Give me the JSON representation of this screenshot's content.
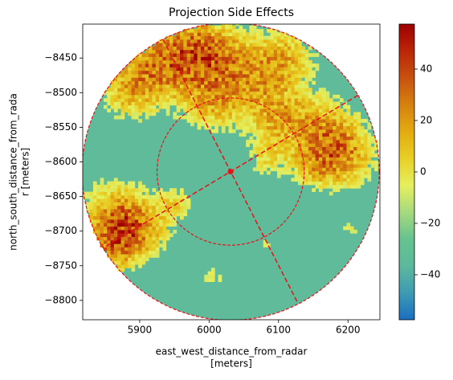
{
  "chart_data": {
    "type": "radar-ppi",
    "title": "Projection Side Effects",
    "xlabel": [
      "east_west_distance_from_radar",
      "[meters]"
    ],
    "ylabel": [
      "north_south_distance_from_rada",
      "r [meters]"
    ],
    "xlim": [
      5818,
      6246
    ],
    "ylim": [
      -8828,
      -8401
    ],
    "xticks": [
      5900,
      6000,
      6100,
      6200
    ],
    "yticks": [
      {
        "value": -8450,
        "label": "−8450"
      },
      {
        "value": -8500,
        "label": "−8500"
      },
      {
        "value": -8550,
        "label": "−8550"
      },
      {
        "value": -8600,
        "label": "−8600"
      },
      {
        "value": -8650,
        "label": "−8650"
      },
      {
        "value": -8700,
        "label": "−8700"
      },
      {
        "value": -8750,
        "label": "−8750"
      },
      {
        "value": -8800,
        "label": "−8800"
      }
    ],
    "clim": [
      -57.5,
      57.5
    ],
    "cticks": [
      {
        "value": -40,
        "label": "−40"
      },
      {
        "value": -20,
        "label": "−20"
      },
      0,
      20,
      40
    ],
    "colormap": [
      "#1a6fc0",
      "#3d9bb3",
      "#5db99c",
      "#66c28f",
      "#a6da7e",
      "#e6ef5e",
      "#e8cf26",
      "#e3ab10",
      "#d6810f",
      "#c7520f",
      "#bb2508",
      "#9c0000"
    ],
    "center": [
      6031,
      -8614
    ],
    "range_rings": [
      106,
      214
    ],
    "azimuth_lines": [
      59,
      333
    ],
    "annotation_color": "#e8121b"
  }
}
